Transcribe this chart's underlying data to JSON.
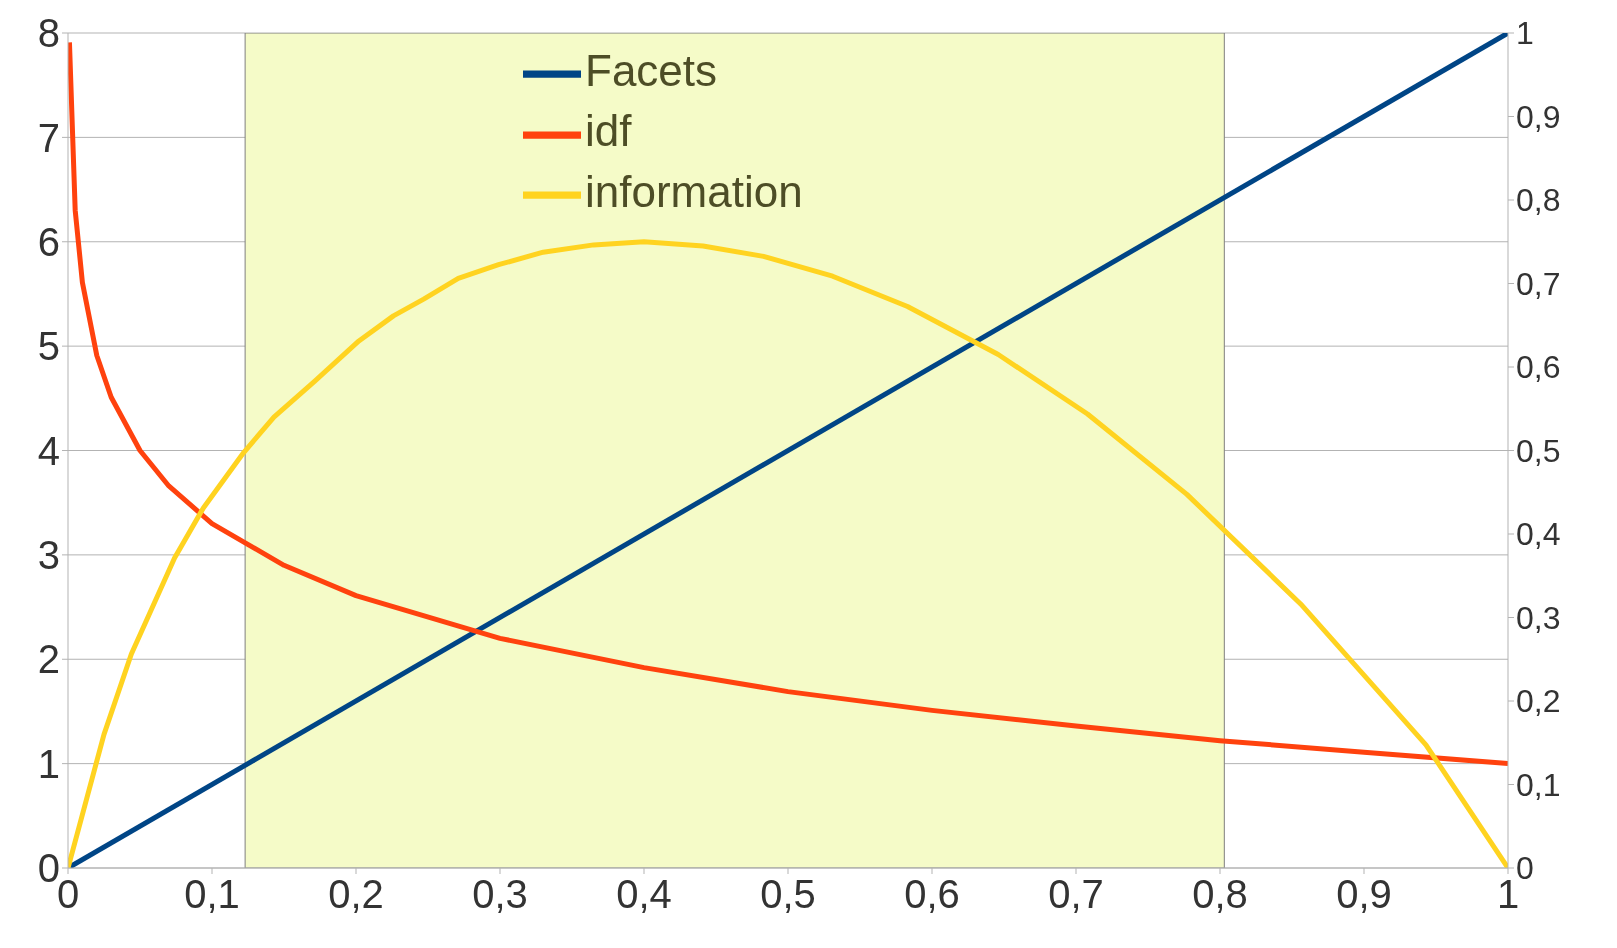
{
  "chart_data": {
    "type": "line",
    "xlim": [
      0,
      1
    ],
    "xticks": [
      0,
      {
        "value": 0.1,
        "label": "0,1"
      },
      {
        "value": 0.2,
        "label": "0,2"
      },
      {
        "value": 0.3,
        "label": "0,3"
      },
      {
        "value": 0.4,
        "label": "0,4"
      },
      {
        "value": 0.5,
        "label": "0,5"
      },
      {
        "value": 0.6,
        "label": "0,6"
      },
      {
        "value": 0.7,
        "label": "0,7"
      },
      {
        "value": 0.8,
        "label": "0,8"
      },
      {
        "value": 0.9,
        "label": "0,9"
      },
      1
    ],
    "ylim": [
      0,
      8
    ],
    "yticks": [
      0,
      1,
      2,
      3,
      4,
      5,
      6,
      7,
      8
    ],
    "y2lim": [
      0,
      1
    ],
    "y2ticks": [
      0,
      {
        "value": 0.1,
        "label": "0,1"
      },
      {
        "value": 0.2,
        "label": "0,2"
      },
      {
        "value": 0.3,
        "label": "0,3"
      },
      {
        "value": 0.4,
        "label": "0,4"
      },
      {
        "value": 0.5,
        "label": "0,5"
      },
      {
        "value": 0.6,
        "label": "0,6"
      },
      {
        "value": 0.7,
        "label": "0,7"
      },
      {
        "value": 0.8,
        "label": "0,8"
      },
      {
        "value": 0.9,
        "label": "0,9"
      },
      1
    ],
    "series": [
      {
        "name": "Facets",
        "color": "#004586",
        "axis": "y2",
        "x": [
          0,
          1
        ],
        "values": [
          0,
          1
        ]
      },
      {
        "name": "idf",
        "color": "#ff420e",
        "x": [
          0.001,
          0.005,
          0.01,
          0.02,
          0.03,
          0.05,
          0.07,
          0.1,
          0.15,
          0.2,
          0.3,
          0.4,
          0.5,
          0.6,
          0.7,
          0.8,
          0.9,
          1
        ],
        "values": [
          7.91,
          6.3,
          5.61,
          4.91,
          4.51,
          4.0,
          3.66,
          3.3,
          2.9,
          2.61,
          2.2,
          1.92,
          1.69,
          1.51,
          1.36,
          1.22,
          1.11,
          1
        ]
      },
      {
        "name": "information",
        "color": "#ffd320",
        "x": [
          0,
          0.025,
          0.044,
          0.074,
          0.094,
          0.122,
          0.143,
          0.171,
          0.202,
          0.226,
          0.247,
          0.271,
          0.299,
          0.33,
          0.365,
          0.4,
          0.441,
          0.483,
          0.531,
          0.583,
          0.646,
          0.708,
          0.777,
          0.856,
          0.943,
          1
        ],
        "values": [
          0,
          1.28,
          2.05,
          2.97,
          3.45,
          3.98,
          4.32,
          4.66,
          5.05,
          5.29,
          5.45,
          5.65,
          5.78,
          5.9,
          5.97,
          6.0,
          5.96,
          5.86,
          5.67,
          5.38,
          4.92,
          4.35,
          3.58,
          2.53,
          1.18,
          0
        ]
      }
    ],
    "bands": [
      {
        "axis": "x",
        "from": 0.123,
        "to": 0.803,
        "color": "#f5fbc8"
      }
    ],
    "grid": "y",
    "legend": "top",
    "line_style": "solid",
    "marker": "none"
  }
}
